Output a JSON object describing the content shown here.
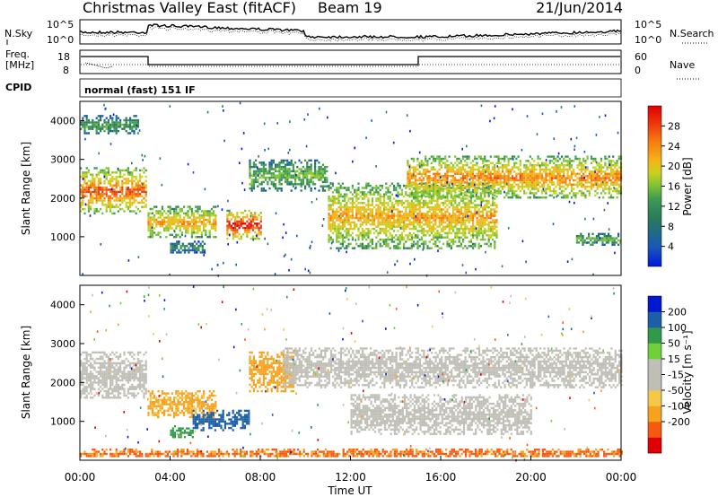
{
  "header": {
    "station": "Christmas Valley East (fitACF)",
    "beam": "Beam 19",
    "date": "21/Jun/2014"
  },
  "noise_panel": {
    "left_label": "N.Sky",
    "right_label": "N.Search",
    "left_ticks": [
      "10^5",
      "10^0"
    ],
    "right_ticks": [
      "10^5",
      "10^0"
    ]
  },
  "freq_panel": {
    "left_label_1": "Freq.",
    "left_label_2": "[MHz]",
    "right_label": "Nave",
    "left_ticks": [
      "18",
      "8"
    ],
    "right_ticks": [
      "60",
      "0"
    ]
  },
  "cpid": {
    "label": "CPID",
    "mode": "normal (fast) 151 IF"
  },
  "colors": {
    "power_scale": [
      "#0018e0",
      "#1858b8",
      "#2a7a5a",
      "#3f9a52",
      "#7cc236",
      "#c8d21e",
      "#f5b318",
      "#f67a10",
      "#ee3d0c",
      "#e00000"
    ],
    "velocity_scale": [
      "#e00000",
      "#f55a10",
      "#f7a21c",
      "#f5c84a",
      "#c0bfb6",
      "#bfbfb8",
      "#6fd03a",
      "#2f9a4a",
      "#1a5fa8",
      "#0018d0"
    ]
  },
  "chart_data": [
    {
      "type": "heatmap",
      "title": "Power",
      "ylabel": "Slant Range [km]",
      "ylim": [
        0,
        4500
      ],
      "yticks": [
        "1000",
        "2000",
        "3000",
        "4000"
      ],
      "xlim_hours": [
        0,
        24
      ],
      "colorbar_label": "Power [dB]",
      "colorbar_ticks": [
        "4",
        "8",
        "12",
        "16",
        "20",
        "24",
        "28"
      ],
      "colorbar_range": [
        0,
        32
      ],
      "echo_regions": [
        {
          "t0": 0.0,
          "t1": 2.9,
          "r0": 1600,
          "r1": 2800,
          "peak_db": 26
        },
        {
          "t0": 0.0,
          "t1": 2.6,
          "r0": 3650,
          "r1": 4150,
          "peak_db": 12
        },
        {
          "t0": 3.0,
          "t1": 6.0,
          "r0": 1000,
          "r1": 1800,
          "peak_db": 22
        },
        {
          "t0": 4.0,
          "t1": 5.5,
          "r0": 600,
          "r1": 900,
          "peak_db": 10
        },
        {
          "t0": 6.5,
          "t1": 8.0,
          "r0": 950,
          "r1": 1700,
          "peak_db": 30
        },
        {
          "t0": 7.5,
          "t1": 11.0,
          "r0": 2200,
          "r1": 3000,
          "peak_db": 14
        },
        {
          "t0": 11.0,
          "t1": 18.5,
          "r0": 700,
          "r1": 2400,
          "peak_db": 22
        },
        {
          "t0": 14.5,
          "t1": 24.0,
          "r0": 2000,
          "r1": 3100,
          "peak_db": 24
        },
        {
          "t0": 22.0,
          "t1": 24.0,
          "r0": 800,
          "r1": 1100,
          "peak_db": 14
        }
      ]
    },
    {
      "type": "heatmap",
      "title": "Velocity",
      "ylabel": "Slant Range [km]",
      "ylim": [
        0,
        4500
      ],
      "yticks": [
        "1000",
        "2000",
        "3000",
        "4000"
      ],
      "xlim_hours": [
        0,
        24
      ],
      "xticks": [
        "00:00",
        "04:00",
        "08:00",
        "12:00",
        "16:00",
        "20:00",
        "00:00"
      ],
      "xlabel": "Time UT",
      "colorbar_label": "Velocity [m s⁻¹]",
      "colorbar_ticks": [
        "200",
        "100",
        "50",
        "15",
        "-15",
        "-50",
        "-100",
        "-200"
      ],
      "echo_regions": [
        {
          "t0": 0.0,
          "t1": 2.9,
          "r0": 1600,
          "r1": 2800,
          "velocity": 0
        },
        {
          "t0": 3.0,
          "t1": 6.0,
          "r0": 1100,
          "r1": 1800,
          "velocity": -40
        },
        {
          "t0": 4.0,
          "t1": 5.0,
          "r0": 600,
          "r1": 900,
          "velocity": 60
        },
        {
          "t0": 5.0,
          "t1": 7.5,
          "r0": 800,
          "r1": 1300,
          "velocity": 90
        },
        {
          "t0": 7.5,
          "t1": 9.5,
          "r0": 1800,
          "r1": 2800,
          "velocity": -60
        },
        {
          "t0": 9.0,
          "t1": 24.0,
          "r0": 1900,
          "r1": 2900,
          "velocity": 0
        },
        {
          "t0": 12.0,
          "t1": 20.0,
          "r0": 700,
          "r1": 1700,
          "velocity": 0
        },
        {
          "t0": 0.0,
          "t1": 24.0,
          "r0": 100,
          "r1": 300,
          "velocity": -80
        }
      ]
    }
  ]
}
